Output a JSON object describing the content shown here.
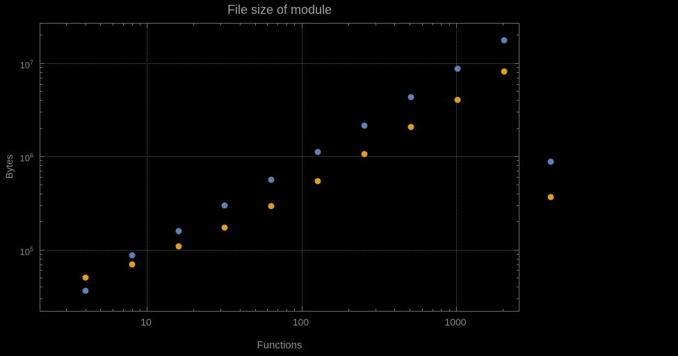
{
  "chart_data": {
    "type": "scatter",
    "title": "File size of module",
    "xlabel": "Functions",
    "ylabel": "Bytes",
    "x_scale": "log",
    "y_scale": "log",
    "xlim": [
      2.05,
      2540
    ],
    "ylim": [
      22000,
      26500000
    ],
    "grid": true,
    "legend": false,
    "x": [
      4,
      8,
      16,
      32,
      64,
      128,
      256,
      512,
      1024,
      2048,
      4096
    ],
    "series": [
      {
        "name": "blue",
        "color": "#5e81b5",
        "values": [
          36000,
          87000,
          158000,
          300000,
          560000,
          1120000,
          2150000,
          4300000,
          8700000,
          17500000,
          870000
        ]
      },
      {
        "name": "orange",
        "color": "#e19c24",
        "values": [
          50000,
          69000,
          108000,
          172000,
          295000,
          545000,
          1050000,
          2050000,
          4000000,
          8200000,
          365000
        ]
      }
    ],
    "x_major_ticks": [
      10,
      100,
      1000
    ],
    "x_major_labels": [
      "10",
      "100",
      "1000"
    ],
    "x_minor_ticks": [
      3,
      4,
      5,
      6,
      7,
      8,
      9,
      20,
      30,
      40,
      50,
      60,
      70,
      80,
      90,
      200,
      300,
      400,
      500,
      600,
      700,
      800,
      900,
      2000
    ],
    "y_major_exponents": [
      5,
      6,
      7
    ],
    "y_minor_ticks": [
      30000,
      40000,
      50000,
      60000,
      70000,
      80000,
      90000,
      200000,
      300000,
      400000,
      500000,
      600000,
      700000,
      800000,
      900000,
      2000000,
      3000000,
      4000000,
      5000000,
      6000000,
      7000000,
      8000000,
      9000000,
      20000000
    ]
  },
  "style": {
    "background": "#000000",
    "frame_color": "#6e6e6e",
    "grid_color": "#575757",
    "title_color": "#a0a0a0",
    "tick_label_color": "#8a8a8a",
    "axis_label_color": "#8f8f8f"
  }
}
